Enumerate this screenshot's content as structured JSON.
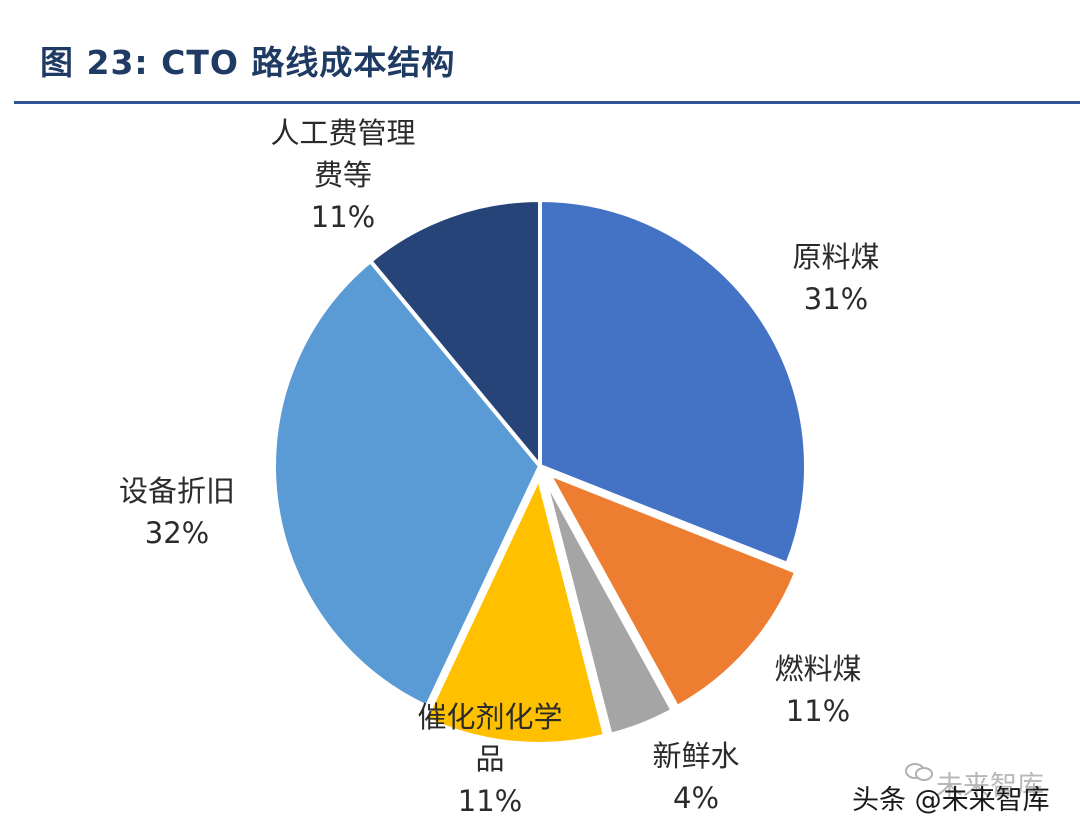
{
  "header": {
    "title": "图 23: CTO 路线成本结构"
  },
  "chart_data": {
    "type": "pie",
    "title": "图 23: CTO 路线成本结构",
    "start_angle_deg": 0,
    "direction": "clockwise",
    "slices": [
      {
        "label": "原料煤",
        "value": 31,
        "display": "31%",
        "color": "#4472c4"
      },
      {
        "label": "燃料煤",
        "value": 11,
        "display": "11%",
        "color": "#ed7d31"
      },
      {
        "label": "新鲜水",
        "value": 4,
        "display": "4%",
        "color": "#a5a5a5"
      },
      {
        "label": "催化剂化学品",
        "value": 11,
        "display": "11%",
        "color": "#ffc000"
      },
      {
        "label": "设备折旧",
        "value": 32,
        "display": "32%",
        "color": "#5b9bd5"
      },
      {
        "label": "人工费管理费等",
        "value": 11,
        "display": "11%",
        "color": "#264478"
      }
    ],
    "label_lines": [
      [
        "原料煤"
      ],
      [
        "燃料煤"
      ],
      [
        "新鲜水"
      ],
      [
        "催化剂化学",
        "品"
      ],
      [
        "设备折旧"
      ],
      [
        "人工费管理",
        "费等"
      ]
    ]
  },
  "watermark": {
    "text": "头条 @未来智库",
    "faint_text": "未来智库"
  }
}
